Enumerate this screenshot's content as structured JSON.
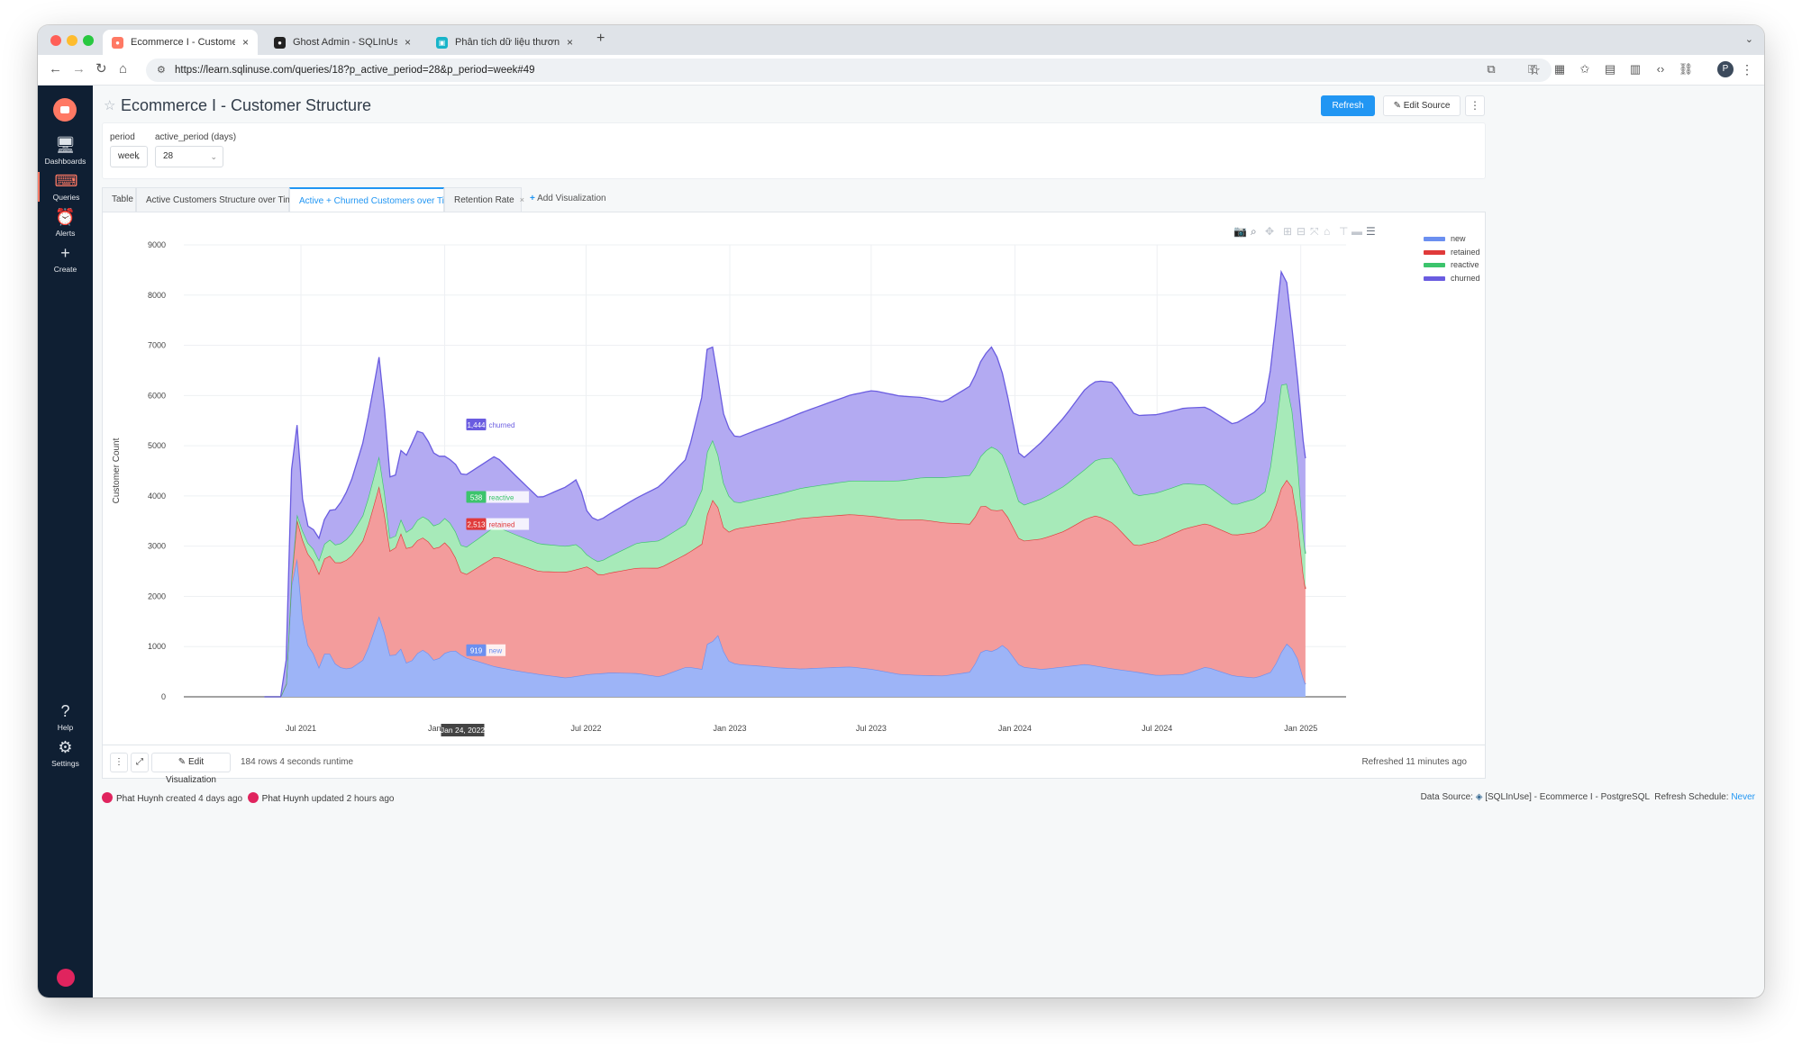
{
  "browser": {
    "tabs": [
      {
        "title": "Ecommerce I - Customer Stru",
        "active": true
      },
      {
        "title": "Ghost Admin - SQLInUse",
        "active": false
      },
      {
        "title": "Phân tích dữ liệu thương mại",
        "active": false
      }
    ],
    "url": "https://learn.sqlinuse.com/queries/18?p_active_period=28&p_period=week#49"
  },
  "sidebar": {
    "items": [
      {
        "label": "Dashboards"
      },
      {
        "label": "Queries"
      },
      {
        "label": "Alerts"
      },
      {
        "label": "Create"
      },
      {
        "label": "Help"
      },
      {
        "label": "Settings"
      }
    ]
  },
  "page": {
    "title": "Ecommerce I - Customer Structure",
    "refresh_label": "Refresh",
    "edit_source_label": "Edit Source",
    "more_label": "⋮"
  },
  "params": [
    {
      "label": "period",
      "value": "week"
    },
    {
      "label": "active_period (days)",
      "value": "28"
    }
  ],
  "vis_tabs": [
    {
      "label": "Table",
      "closable": false
    },
    {
      "label": "Active Customers Structure over Time",
      "closable": true
    },
    {
      "label": "Active + Churned Customers over Time",
      "closable": true,
      "active": true
    },
    {
      "label": "Retention Rate",
      "closable": true
    }
  ],
  "add_visualization_label": "Add Visualization",
  "footer": {
    "edit_visualization_label": "Edit Visualization",
    "rows_runtime": "184 rows 4 seconds runtime",
    "refreshed": "Refreshed 11 minutes ago"
  },
  "meta": {
    "created_user": "Phat Huynh",
    "created_text": "created 4 days ago",
    "updated_user": "Phat Huynh",
    "updated_text": "updated 2 hours ago",
    "data_source_label": "Data Source:",
    "data_source": "[SQLInUse] - Ecommerce I - PostgreSQL",
    "refresh_schedule_label": "Refresh Schedule:",
    "refresh_schedule": "Never"
  },
  "chart_data": {
    "type": "area",
    "stacked": true,
    "ylabel": "Customer Count",
    "ylim": [
      0,
      9000
    ],
    "yticks": [
      0,
      1000,
      2000,
      3000,
      4000,
      5000,
      6000,
      7000,
      8000,
      9000
    ],
    "xticks": [
      "Jul 2021",
      "Jan 2022",
      "Jul 2022",
      "Jan 2023",
      "Jul 2023",
      "Jan 2024",
      "Jul 2024",
      "Jan 2025"
    ],
    "x_range": [
      "2021-02-01",
      "2025-02-28"
    ],
    "grid": true,
    "legend_position": "top-right",
    "hover": {
      "x_label": "Jan 24, 2022",
      "new": "919",
      "retained": "2,513",
      "reactive": "538",
      "churned": "1,444"
    },
    "series": [
      {
        "name": "new",
        "color": "#6b8ff0",
        "fill": "#9db4f7",
        "x": [
          "2021-06-10",
          "2021-06-14",
          "2021-06-21",
          "2021-06-28",
          "2021-07-05",
          "2021-07-12",
          "2021-07-19",
          "2021-07-26",
          "2021-08-02",
          "2021-08-16",
          "2021-09-01",
          "2021-09-20",
          "2021-10-10",
          "2021-10-25",
          "2021-11-05",
          "2021-11-15",
          "2021-11-25",
          "2021-12-06",
          "2021-12-20",
          "2022-01-03",
          "2022-01-17",
          "2022-01-24",
          "2022-02-14",
          "2022-03-07",
          "2022-04-04",
          "2022-05-02",
          "2022-06-06",
          "2022-07-04",
          "2022-08-01",
          "2022-09-05",
          "2022-10-03",
          "2022-11-07",
          "2022-11-28",
          "2022-12-05",
          "2022-12-12",
          "2022-12-19",
          "2022-12-26",
          "2023-01-09",
          "2023-02-06",
          "2023-03-06",
          "2023-04-03",
          "2023-05-01",
          "2023-06-05",
          "2023-07-03",
          "2023-08-07",
          "2023-09-04",
          "2023-10-02",
          "2023-11-06",
          "2023-11-20",
          "2023-12-04",
          "2023-12-18",
          "2024-01-08",
          "2024-02-05",
          "2024-03-04",
          "2024-04-01",
          "2024-05-06",
          "2024-06-03",
          "2024-07-01",
          "2024-08-05",
          "2024-09-02",
          "2024-10-07",
          "2024-11-04",
          "2024-11-25",
          "2024-12-09",
          "2024-12-16",
          "2024-12-30",
          "2025-01-06"
        ],
        "values": [
          0,
          500,
          2900,
          2700,
          1100,
          1000,
          800,
          500,
          1000,
          600,
          550,
          750,
          1650,
          700,
          1000,
          600,
          850,
          950,
          700,
          900,
          919,
          800,
          700,
          600,
          520,
          450,
          380,
          450,
          480,
          470,
          400,
          600,
          550,
          1250,
          1050,
          1300,
          750,
          650,
          620,
          580,
          560,
          580,
          600,
          550,
          450,
          430,
          420,
          500,
          950,
          900,
          1050,
          600,
          550,
          600,
          650,
          560,
          500,
          430,
          450,
          600,
          420,
          380,
          500,
          950,
          1100,
          700,
          250
        ]
      },
      {
        "name": "retained",
        "color": "#e03a3a",
        "fill": "#f39c9c",
        "x": [
          "2021-06-10",
          "2021-06-14",
          "2021-06-21",
          "2021-07-05",
          "2021-08-02",
          "2021-09-01",
          "2021-10-10",
          "2021-10-25",
          "2021-11-05",
          "2021-11-25",
          "2022-01-03",
          "2022-01-24",
          "2022-03-07",
          "2022-05-02",
          "2022-07-04",
          "2022-07-18",
          "2022-09-05",
          "2022-11-07",
          "2022-12-05",
          "2022-12-12",
          "2022-12-19",
          "2023-01-09",
          "2023-04-03",
          "2023-07-03",
          "2023-09-04",
          "2023-10-02",
          "2023-11-20",
          "2023-12-04",
          "2024-01-08",
          "2024-03-04",
          "2024-04-15",
          "2024-05-06",
          "2024-06-03",
          "2024-08-05",
          "2024-10-07",
          "2024-11-18",
          "2024-12-09",
          "2024-12-23",
          "2025-01-06"
        ],
        "values": [
          0,
          0,
          200,
          1800,
          1900,
          2200,
          2600,
          2000,
          2300,
          2250,
          2200,
          1594,
          2200,
          2050,
          2150,
          1950,
          2100,
          2250,
          2600,
          2900,
          2400,
          2700,
          3000,
          3050,
          3100,
          3050,
          2900,
          2800,
          2500,
          2700,
          3000,
          2900,
          2500,
          2900,
          2800,
          2950,
          3300,
          3200,
          1900
        ]
      },
      {
        "name": "reactive",
        "color": "#3cc46c",
        "fill": "#a7eab9",
        "x": [
          "2021-06-10",
          "2021-06-21",
          "2021-07-05",
          "2021-08-02",
          "2021-10-10",
          "2021-10-25",
          "2021-11-25",
          "2022-01-24",
          "2022-03-07",
          "2022-05-02",
          "2022-06-20",
          "2022-07-04",
          "2022-09-05",
          "2022-11-07",
          "2022-12-05",
          "2022-12-19",
          "2023-01-09",
          "2023-04-03",
          "2023-07-03",
          "2023-10-02",
          "2023-11-20",
          "2023-12-04",
          "2024-01-08",
          "2024-04-01",
          "2024-05-06",
          "2024-06-03",
          "2024-08-05",
          "2024-10-07",
          "2024-11-18",
          "2024-12-09",
          "2024-12-23",
          "2025-01-06"
        ],
        "values": [
          0,
          50,
          200,
          300,
          600,
          200,
          400,
          538,
          600,
          550,
          500,
          200,
          500,
          600,
          1300,
          1000,
          500,
          600,
          700,
          900,
          1000,
          1300,
          700,
          1000,
          1300,
          1000,
          900,
          600,
          700,
          2200,
          1400,
          700
        ]
      },
      {
        "name": "churned",
        "color": "#6a5ce0",
        "fill": "#b3aaf2",
        "x": [
          "2021-06-10",
          "2021-06-21",
          "2021-07-05",
          "2021-08-02",
          "2021-09-01",
          "2021-10-10",
          "2021-10-25",
          "2021-11-25",
          "2022-01-03",
          "2022-01-24",
          "2022-03-07",
          "2022-05-02",
          "2022-06-20",
          "2022-07-04",
          "2022-09-05",
          "2022-11-07",
          "2022-12-05",
          "2022-12-19",
          "2023-01-09",
          "2023-04-03",
          "2023-07-03",
          "2023-10-02",
          "2023-11-20",
          "2023-12-04",
          "2024-01-08",
          "2024-04-01",
          "2024-05-06",
          "2024-06-03",
          "2024-08-05",
          "2024-10-07",
          "2024-11-18",
          "2024-12-09",
          "2024-12-23",
          "2025-01-06"
        ],
        "values": [
          0,
          2600,
          300,
          500,
          1000,
          2000,
          1100,
          1800,
          1200,
          1444,
          1400,
          900,
          1300,
          800,
          900,
          1300,
          2100,
          1400,
          1300,
          1500,
          1800,
          1500,
          1900,
          2000,
          900,
          1600,
          1500,
          1600,
          1500,
          1600,
          1800,
          2300,
          1500,
          1900
        ]
      }
    ]
  }
}
